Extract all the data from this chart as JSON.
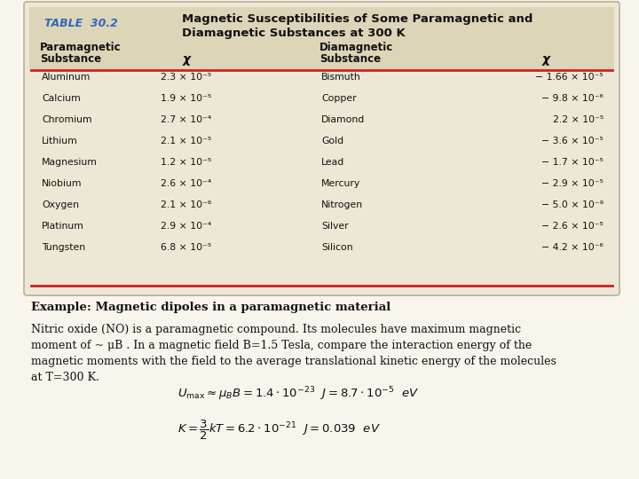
{
  "bg_color": "#ede8d5",
  "white_bg": "#f0ece0",
  "table_border_color": "#aaaaaa",
  "red_line_color": "#cc2222",
  "table_label_color": "#3366bb",
  "title_table": "TABLE  30.2",
  "title_main": "Magnetic Susceptibilities of Some Paramagnetic and\nDiamagnetic Substances at 300 K",
  "para_substances": [
    "Aluminum",
    "Calcium",
    "Chromium",
    "Lithium",
    "Magnesium",
    "Niobium",
    "Oxygen",
    "Platinum",
    "Tungsten"
  ],
  "para_chi": [
    "2.3 × 10⁻⁵",
    "1.9 × 10⁻⁵",
    "2.7 × 10⁻⁴",
    "2.1 × 10⁻⁵",
    "1.2 × 10⁻⁵",
    "2.6 × 10⁻⁴",
    "2.1 × 10⁻⁶",
    "2.9 × 10⁻⁴",
    "6.8 × 10⁻⁵"
  ],
  "dia_substances": [
    "Bismuth",
    "Copper",
    "Diamond",
    "Gold",
    "Lead",
    "Mercury",
    "Nitrogen",
    "Silver",
    "Silicon"
  ],
  "dia_chi": [
    "− 1.66 × 10⁻⁵",
    "− 9.8 × 10⁻⁶",
    "2.2 × 10⁻⁵",
    "− 3.6 × 10⁻⁵",
    "− 1.7 × 10⁻⁵",
    "− 2.9 × 10⁻⁵",
    "− 5.0 × 10⁻⁹",
    "− 2.6 × 10⁻⁵",
    "− 4.2 × 10⁻⁶"
  ],
  "example_title": "Example: Magnetic dipoles in a paramagnetic material",
  "body_lines": [
    "Nitric oxide (NO) is a paramagnetic compound. Its molecules have maximum magnetic",
    "moment of ~ μB . In a magnetic field B=1.5 Tesla, compare the interaction energy of the",
    "magnetic moments with the field to the average translational kinetic energy of the molecules",
    "at T=300 K."
  ],
  "page_bg": "#f8f5ec"
}
